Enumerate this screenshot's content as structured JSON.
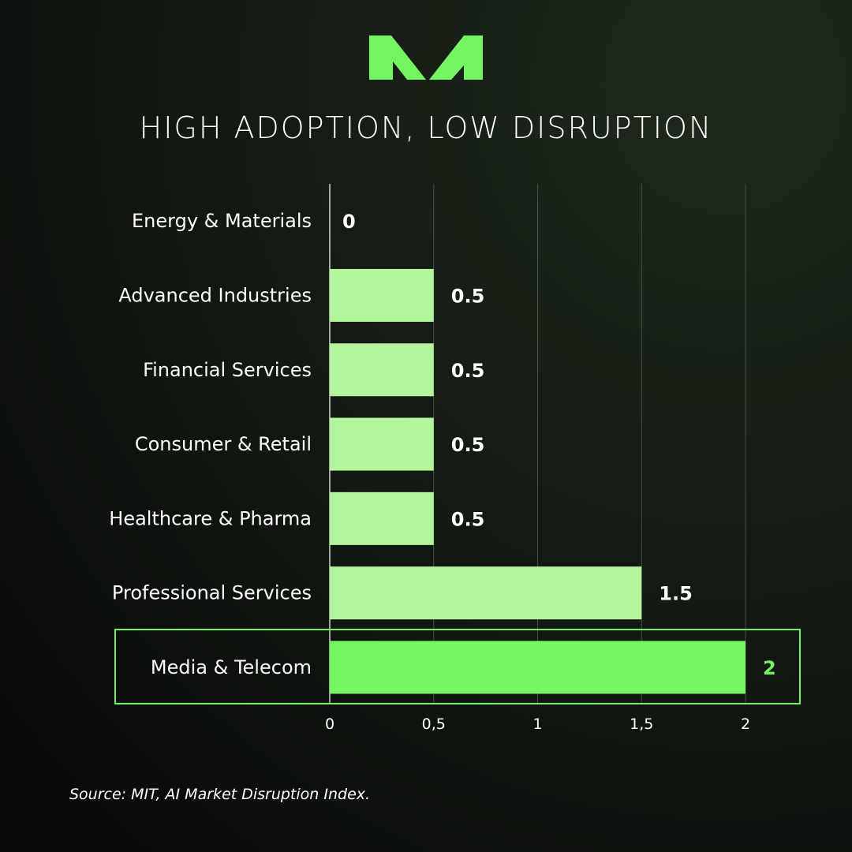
{
  "title": "HIGH ADOPTION, LOW DISRUPTION",
  "source": "Source: MIT, AI Market Disruption Index.",
  "logo_icon": "m-logo-icon",
  "colors": {
    "bar": "#b3f59c",
    "highlight": "#76f562",
    "grid": "#4a4f49",
    "text": "#ffffff"
  },
  "chart_data": {
    "type": "bar",
    "orientation": "horizontal",
    "title": "HIGH ADOPTION, LOW DISRUPTION",
    "categories": [
      "Energy & Materials",
      "Advanced Industries",
      "Financial Services",
      "Consumer & Retail",
      "Healthcare & Pharma",
      "Professional Services",
      "Media & Telecom"
    ],
    "values": [
      0,
      0.5,
      0.5,
      0.5,
      0.5,
      1.5,
      2
    ],
    "value_labels": [
      "0",
      "0.5",
      "0.5",
      "0.5",
      "0.5",
      "1.5",
      "2"
    ],
    "highlight": "Media & Telecom",
    "xlim": [
      0,
      2
    ],
    "xticks": [
      0,
      0.5,
      1,
      1.5,
      2
    ],
    "xtick_labels": [
      "0",
      "0,5",
      "1",
      "1,5",
      "2"
    ],
    "grid": true,
    "legend": "none"
  }
}
